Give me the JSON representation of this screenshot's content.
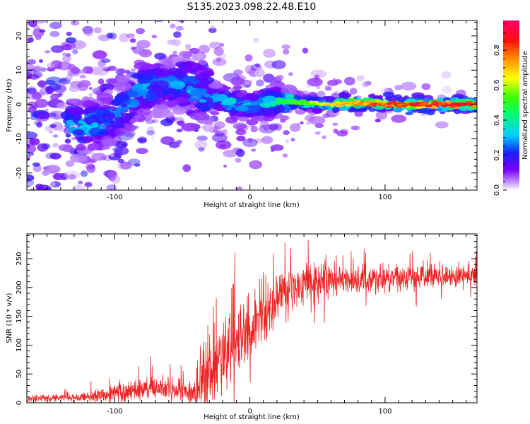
{
  "title": "S135.2023.098.22.48.E10",
  "colors": {
    "snr_line": "#ee2222",
    "frame": "#000000",
    "background": "#ffffff"
  },
  "chart_data": [
    {
      "type": "heatmap",
      "name": "spectrogram",
      "xlabel": "Height of straight line (km)",
      "ylabel": "Frequency (Hz)",
      "xlim": [
        -165,
        168
      ],
      "ylim": [
        -25,
        24.5
      ],
      "xticks": [
        -100,
        0,
        100
      ],
      "yticks": [
        -20,
        -10,
        0,
        10,
        20
      ],
      "colorbar": {
        "label": "Normalized spectral amplitude",
        "range": [
          0,
          0.97
        ],
        "ticks": [
          0.0,
          0.2,
          0.4,
          0.6,
          0.8
        ],
        "colormap": "rainbow (white-violet-blue-cyan-green-yellow-red-magenta)"
      },
      "ridge": [
        {
          "x": -110,
          "freq": -6,
          "amp": 0.35
        },
        {
          "x": -90,
          "freq": 0,
          "amp": 0.3
        },
        {
          "x": -80,
          "freq": 5,
          "amp": 0.35
        },
        {
          "x": -60,
          "freq": 6,
          "amp": 0.3
        },
        {
          "x": -45,
          "freq": 6,
          "amp": 0.35
        },
        {
          "x": -35,
          "freq": 3,
          "amp": 0.35
        },
        {
          "x": -20,
          "freq": 1,
          "amp": 0.4
        },
        {
          "x": 0,
          "freq": -0.5,
          "amp": 0.4
        },
        {
          "x": 20,
          "freq": 1,
          "amp": 0.45
        },
        {
          "x": 40,
          "freq": 0.5,
          "amp": 0.55
        },
        {
          "x": 60,
          "freq": 0,
          "amp": 0.7
        },
        {
          "x": 80,
          "freq": 0.5,
          "amp": 0.75
        },
        {
          "x": 100,
          "freq": 0,
          "amp": 0.85
        },
        {
          "x": 120,
          "freq": 0,
          "amp": 0.9
        },
        {
          "x": 140,
          "freq": 0,
          "amp": 0.9
        },
        {
          "x": 165,
          "freq": 0,
          "amp": 0.85
        }
      ]
    },
    {
      "type": "line",
      "name": "snr",
      "xlabel": "Height of straight line (km)",
      "ylabel": "SNR (10 * v/v)",
      "xlim": [
        -165,
        168
      ],
      "ylim": [
        0,
        293
      ],
      "xticks": [
        -100,
        0,
        100
      ],
      "yticks": [
        0,
        50,
        100,
        150,
        200,
        250
      ],
      "envelope": [
        {
          "x": -165,
          "mean": 7,
          "spread": 5
        },
        {
          "x": -130,
          "mean": 9,
          "spread": 7
        },
        {
          "x": -110,
          "mean": 14,
          "spread": 12
        },
        {
          "x": -90,
          "mean": 20,
          "spread": 18
        },
        {
          "x": -70,
          "mean": 25,
          "spread": 22
        },
        {
          "x": -50,
          "mean": 22,
          "spread": 20
        },
        {
          "x": -40,
          "mean": 15,
          "spread": 18
        },
        {
          "x": -33,
          "mean": 55,
          "spread": 60
        },
        {
          "x": -25,
          "mean": 70,
          "spread": 60
        },
        {
          "x": -15,
          "mean": 90,
          "spread": 55
        },
        {
          "x": -5,
          "mean": 110,
          "spread": 55
        },
        {
          "x": 5,
          "mean": 140,
          "spread": 50
        },
        {
          "x": 15,
          "mean": 160,
          "spread": 45
        },
        {
          "x": 25,
          "mean": 195,
          "spread": 40
        },
        {
          "x": 40,
          "mean": 205,
          "spread": 35
        },
        {
          "x": 60,
          "mean": 212,
          "spread": 30
        },
        {
          "x": 80,
          "mean": 214,
          "spread": 25
        },
        {
          "x": 100,
          "mean": 214,
          "spread": 22
        },
        {
          "x": 120,
          "mean": 216,
          "spread": 20
        },
        {
          "x": 145,
          "mean": 218,
          "spread": 18
        },
        {
          "x": 168,
          "mean": 222,
          "spread": 18
        }
      ]
    }
  ]
}
